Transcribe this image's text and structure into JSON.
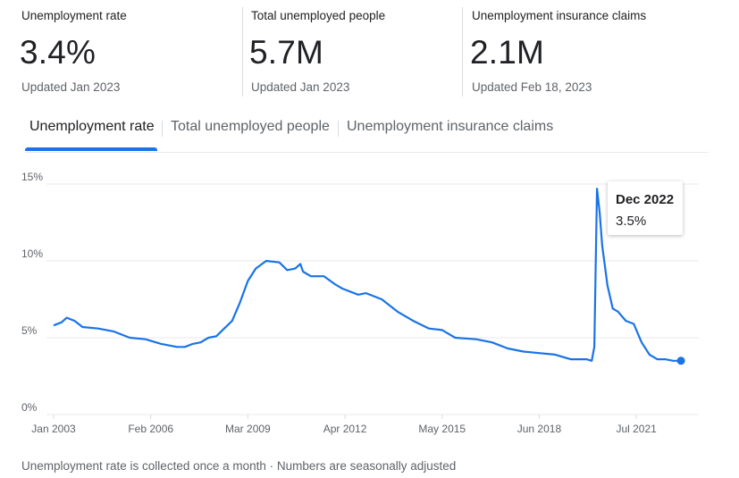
{
  "stats": [
    {
      "title": "Unemployment rate",
      "value": "3.4%",
      "updated": "Updated Jan 2023"
    },
    {
      "title": "Total unemployed people",
      "value": "5.7M",
      "updated": "Updated Jan 2023"
    },
    {
      "title": "Unemployment insurance claims",
      "value": "2.1M",
      "updated": "Updated Feb 18, 2023"
    }
  ],
  "tabs": [
    {
      "label": "Unemployment rate",
      "active": true
    },
    {
      "label": "Total unemployed people",
      "active": false
    },
    {
      "label": "Unemployment insurance claims",
      "active": false
    }
  ],
  "tooltip": {
    "date": "Dec 2022",
    "value": "3.5%"
  },
  "footnote": "Unemployment rate is collected once a month · Numbers are seasonally adjusted",
  "colors": {
    "line": "#1a73e8",
    "accent": "#1a73e8"
  },
  "chart_data": {
    "type": "line",
    "title": "",
    "xlabel": "",
    "ylabel": "",
    "ylim": [
      0,
      15
    ],
    "xlim": [
      "2003-01",
      "2023-01"
    ],
    "y_ticks": [
      {
        "value": 0,
        "label": "0%"
      },
      {
        "value": 5,
        "label": "5%"
      },
      {
        "value": 10,
        "label": "10%"
      },
      {
        "value": 15,
        "label": "15%"
      }
    ],
    "x_ticks": [
      {
        "date": "2003-01",
        "label": "Jan 2003"
      },
      {
        "date": "2006-02",
        "label": "Feb 2006"
      },
      {
        "date": "2009-03",
        "label": "Mar 2009"
      },
      {
        "date": "2012-04",
        "label": "Apr 2012"
      },
      {
        "date": "2015-05",
        "label": "May 2015"
      },
      {
        "date": "2018-06",
        "label": "Jun 2018"
      },
      {
        "date": "2021-07",
        "label": "Jul 2021"
      }
    ],
    "grid": true,
    "legend": "none",
    "highlight": {
      "date": "2022-12",
      "value": 3.5
    },
    "series": [
      {
        "points": [
          [
            "2003-01",
            5.8
          ],
          [
            "2003-04",
            6.0
          ],
          [
            "2003-06",
            6.3
          ],
          [
            "2003-09",
            6.1
          ],
          [
            "2003-12",
            5.7
          ],
          [
            "2004-06",
            5.6
          ],
          [
            "2004-12",
            5.4
          ],
          [
            "2005-06",
            5.0
          ],
          [
            "2005-12",
            4.9
          ],
          [
            "2006-06",
            4.6
          ],
          [
            "2006-12",
            4.4
          ],
          [
            "2007-03",
            4.4
          ],
          [
            "2007-06",
            4.6
          ],
          [
            "2007-09",
            4.7
          ],
          [
            "2007-12",
            5.0
          ],
          [
            "2008-03",
            5.1
          ],
          [
            "2008-06",
            5.6
          ],
          [
            "2008-09",
            6.1
          ],
          [
            "2008-12",
            7.3
          ],
          [
            "2009-03",
            8.7
          ],
          [
            "2009-06",
            9.5
          ],
          [
            "2009-10",
            10.0
          ],
          [
            "2010-03",
            9.9
          ],
          [
            "2010-06",
            9.4
          ],
          [
            "2010-09",
            9.5
          ],
          [
            "2010-11",
            9.8
          ],
          [
            "2010-12",
            9.3
          ],
          [
            "2011-03",
            9.0
          ],
          [
            "2011-08",
            9.0
          ],
          [
            "2011-12",
            8.5
          ],
          [
            "2012-03",
            8.2
          ],
          [
            "2012-09",
            7.8
          ],
          [
            "2012-12",
            7.9
          ],
          [
            "2013-06",
            7.5
          ],
          [
            "2013-12",
            6.7
          ],
          [
            "2014-06",
            6.1
          ],
          [
            "2014-12",
            5.6
          ],
          [
            "2015-05",
            5.5
          ],
          [
            "2015-10",
            5.0
          ],
          [
            "2016-06",
            4.9
          ],
          [
            "2016-12",
            4.7
          ],
          [
            "2017-06",
            4.3
          ],
          [
            "2017-12",
            4.1
          ],
          [
            "2018-06",
            4.0
          ],
          [
            "2018-12",
            3.9
          ],
          [
            "2019-06",
            3.6
          ],
          [
            "2019-12",
            3.6
          ],
          [
            "2020-02",
            3.5
          ],
          [
            "2020-03",
            4.4
          ],
          [
            "2020-04",
            14.7
          ],
          [
            "2020-05",
            13.2
          ],
          [
            "2020-06",
            11.0
          ],
          [
            "2020-08",
            8.4
          ],
          [
            "2020-10",
            6.9
          ],
          [
            "2020-12",
            6.7
          ],
          [
            "2021-03",
            6.1
          ],
          [
            "2021-06",
            5.9
          ],
          [
            "2021-09",
            4.7
          ],
          [
            "2021-12",
            3.9
          ],
          [
            "2022-03",
            3.6
          ],
          [
            "2022-06",
            3.6
          ],
          [
            "2022-09",
            3.5
          ],
          [
            "2022-12",
            3.5
          ]
        ]
      }
    ]
  }
}
